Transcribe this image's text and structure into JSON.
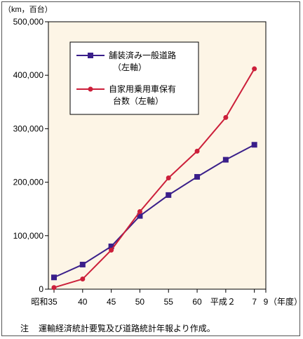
{
  "chart_data": {
    "type": "line",
    "y_unit": "（km，百台）",
    "x_unit": "（年度）",
    "categories": [
      "昭和35",
      "40",
      "45",
      "50",
      "55",
      "60",
      "平成２",
      "7",
      "9"
    ],
    "x_years": [
      1960,
      1965,
      1970,
      1975,
      1980,
      1985,
      1990,
      1995,
      1997
    ],
    "ylim": [
      0,
      500000
    ],
    "yticks": [
      0,
      100000,
      200000,
      300000,
      400000,
      500000
    ],
    "ytick_labels": [
      "0",
      "100,000",
      "200,000",
      "300,000",
      "400,000",
      "500,000"
    ],
    "grid": false,
    "legend_position": "top-left",
    "series": [
      {
        "name_lines": [
          "舗装済み一般道路",
          "（左軸）"
        ],
        "color": "#3a1f8a",
        "marker": "square",
        "values": [
          22000,
          46000,
          80000,
          137000,
          176000,
          210000,
          242000,
          270000,
          null
        ]
      },
      {
        "name_lines": [
          "自家用乗用車保有",
          "台数（左軸）"
        ],
        "color": "#cc1f3a",
        "marker": "circle",
        "values": [
          3000,
          19000,
          73000,
          145000,
          208000,
          258000,
          321000,
          412000,
          null
        ]
      }
    ]
  },
  "note": {
    "mark": "注",
    "text": "運輸経済統計要覧及び道路統計年報より作成。"
  },
  "colors": {
    "plot_background": "#fdf5e6",
    "axis": "#000000"
  }
}
